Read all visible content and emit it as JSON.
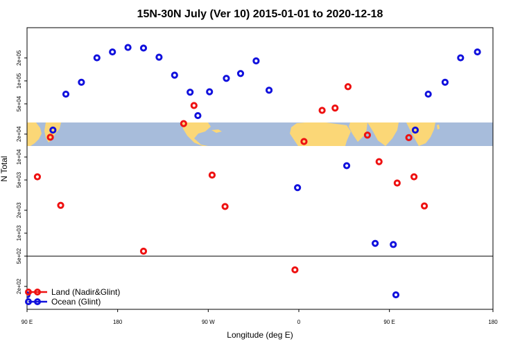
{
  "chart_data": {
    "type": "scatter",
    "title": "15N-30N July (Ver 10)   2015-01-01 to 2020-12-18",
    "xlabel": "Longitude (deg E)",
    "ylabel": "N Total",
    "x_scale": "linear",
    "y_scale": "log",
    "xlim": [
      90,
      450
    ],
    "ylim": [
      100,
      500000
    ],
    "grid": false,
    "legend_position": "bottom-left",
    "x_ticks": [
      {
        "value": 90,
        "label": "90 E"
      },
      {
        "value": 160,
        "label": "180"
      },
      {
        "value": 230,
        "label": "90 W"
      },
      {
        "value": 300,
        "label": "0"
      },
      {
        "value": 370,
        "label": "90 E"
      },
      {
        "value": 450,
        "label": "180"
      }
    ],
    "y_ticks": [
      {
        "value": 200,
        "label": "2e+02"
      },
      {
        "value": 500,
        "label": "5e+02"
      },
      {
        "value": 1000,
        "label": "1e+03"
      },
      {
        "value": 2000,
        "label": "2e+03"
      },
      {
        "value": 5000,
        "label": "5e+03"
      },
      {
        "value": 10000,
        "label": "1e+04"
      },
      {
        "value": 20000,
        "label": "2e+04"
      },
      {
        "value": 50000,
        "label": "5e+04"
      },
      {
        "value": 100000,
        "label": "1e+05"
      },
      {
        "value": 200000,
        "label": "2e+05"
      }
    ],
    "reference_line_y": 500,
    "series": [
      {
        "name": "Land (Nadir&Glint)",
        "color": "#ee1111",
        "points": [
          {
            "x": 98,
            "y": 5500
          },
          {
            "x": 108,
            "y": 18200
          },
          {
            "x": 116,
            "y": 2320
          },
          {
            "x": 180,
            "y": 580
          },
          {
            "x": 211,
            "y": 27500
          },
          {
            "x": 219,
            "y": 47500
          },
          {
            "x": 233,
            "y": 5800
          },
          {
            "x": 243,
            "y": 2240
          },
          {
            "x": 297,
            "y": 330
          },
          {
            "x": 304,
            "y": 16000
          },
          {
            "x": 318,
            "y": 41000
          },
          {
            "x": 328,
            "y": 44000
          },
          {
            "x": 338,
            "y": 84000
          },
          {
            "x": 353,
            "y": 19400
          },
          {
            "x": 362,
            "y": 8700
          },
          {
            "x": 376,
            "y": 4560
          },
          {
            "x": 385,
            "y": 18000
          },
          {
            "x": 389,
            "y": 5500
          },
          {
            "x": 397,
            "y": 2280
          }
        ]
      },
      {
        "name": "Ocean (Glint)",
        "color": "#1111dd",
        "points": [
          {
            "x": 90,
            "y": 155
          },
          {
            "x": 110,
            "y": 22600
          },
          {
            "x": 120,
            "y": 67000
          },
          {
            "x": 132,
            "y": 96000
          },
          {
            "x": 144,
            "y": 201000
          },
          {
            "x": 156,
            "y": 240000
          },
          {
            "x": 168,
            "y": 275000
          },
          {
            "x": 180,
            "y": 270000
          },
          {
            "x": 192,
            "y": 205000
          },
          {
            "x": 204,
            "y": 119000
          },
          {
            "x": 216,
            "y": 71000
          },
          {
            "x": 222,
            "y": 35000
          },
          {
            "x": 231,
            "y": 72000
          },
          {
            "x": 244,
            "y": 108000
          },
          {
            "x": 255,
            "y": 125000
          },
          {
            "x": 267,
            "y": 183000
          },
          {
            "x": 277,
            "y": 75500
          },
          {
            "x": 299,
            "y": 3960
          },
          {
            "x": 337,
            "y": 7700
          },
          {
            "x": 359,
            "y": 735
          },
          {
            "x": 373,
            "y": 710
          },
          {
            "x": 375,
            "y": 155
          },
          {
            "x": 390,
            "y": 22600
          },
          {
            "x": 400,
            "y": 67000
          },
          {
            "x": 413,
            "y": 96000
          },
          {
            "x": 425,
            "y": 201000
          },
          {
            "x": 438,
            "y": 240000
          }
        ]
      }
    ]
  }
}
